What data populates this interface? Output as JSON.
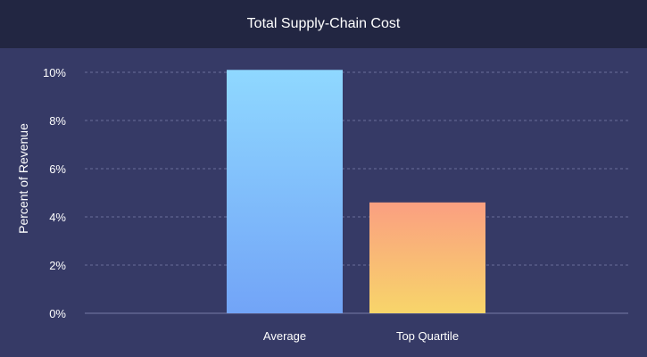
{
  "chart_data": {
    "type": "bar",
    "title": "Total Supply-Chain Cost",
    "ylabel": "Percent of  Revenue",
    "xlabel": "",
    "categories": [
      "Average",
      "Top Quartile"
    ],
    "values": [
      10.1,
      4.6
    ],
    "ylim": [
      0,
      10
    ],
    "yticks": [
      "0%",
      "2%",
      "4%",
      "6%",
      "8%",
      "10%"
    ],
    "grid": true,
    "colors": {
      "background": "#363a66",
      "header": "#222642",
      "gridline": "#6a6e99",
      "bars": [
        {
          "top": "#8fd8ff",
          "bottom": "#72a4f7"
        },
        {
          "top": "#fa9f81",
          "bottom": "#f8d56a"
        }
      ]
    }
  }
}
